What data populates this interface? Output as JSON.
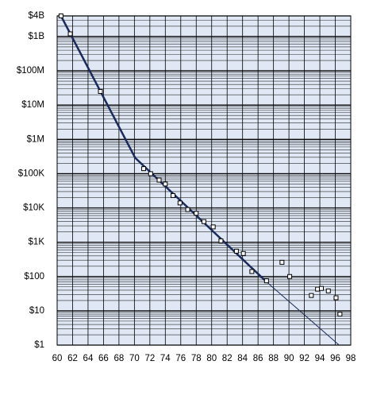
{
  "chart_data": {
    "type": "scatter",
    "log_y": true,
    "grid": true,
    "minor_grid": true,
    "background": "#dfe8f4",
    "point_color": "#000000",
    "xlim": [
      60,
      98
    ],
    "xticks": [
      60,
      62,
      64,
      66,
      68,
      70,
      72,
      74,
      76,
      78,
      80,
      82,
      84,
      86,
      88,
      90,
      92,
      94,
      96,
      98
    ],
    "ylim": [
      1,
      4000000000
    ],
    "yticks": [
      {
        "value": 1,
        "label": "$1"
      },
      {
        "value": 10,
        "label": "$10"
      },
      {
        "value": 100,
        "label": "$100"
      },
      {
        "value": 1000,
        "label": "$1K"
      },
      {
        "value": 10000,
        "label": "$10K"
      },
      {
        "value": 100000,
        "label": "$100K"
      },
      {
        "value": 1000000,
        "label": "$1M"
      },
      {
        "value": 10000000,
        "label": "$10M"
      },
      {
        "value": 100000000,
        "label": "$100M"
      },
      {
        "value": 1000000000,
        "label": "$1B"
      },
      {
        "value": 4000000000,
        "label": "$4B"
      }
    ],
    "x": [
      60.5,
      61.7,
      65.6,
      71.2,
      72.1,
      73.2,
      74,
      75,
      75.9,
      76.9,
      78,
      79,
      80.2,
      81.2,
      83.2,
      84.1,
      85.2,
      87.1,
      89.1,
      90.1,
      92.9,
      93.7,
      94.2,
      95.1,
      96.1,
      96.6
    ],
    "values": [
      4000000000,
      1200000000,
      25000000,
      140000,
      100000,
      65000,
      50000,
      23000,
      14000,
      9000,
      7000,
      4000,
      2800,
      1100,
      550,
      470,
      140,
      75,
      260,
      100,
      28,
      43,
      45,
      38,
      24,
      8
    ],
    "lines": [
      {
        "x": [
          60.5,
          70.1,
          87.1
        ],
        "values": [
          4000000000,
          290000,
          70
        ],
        "color": "#1b2a5c",
        "width": 2.5
      },
      {
        "x": [
          87.1,
          96.5
        ],
        "values": [
          70,
          1
        ],
        "color": "#1b2a5c",
        "width": 1
      }
    ]
  }
}
